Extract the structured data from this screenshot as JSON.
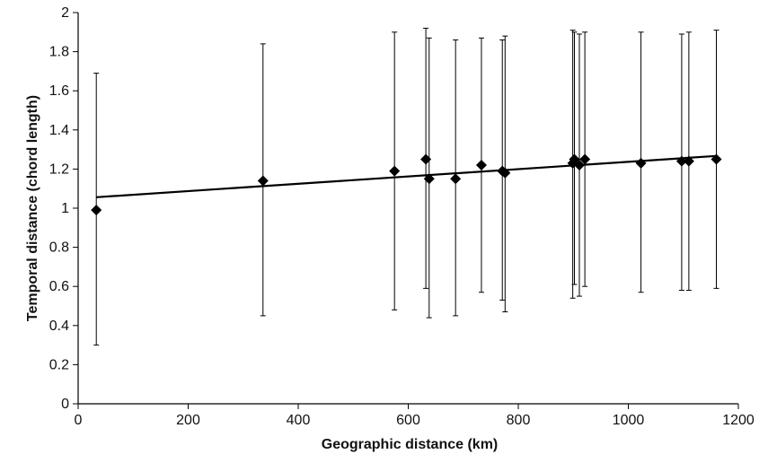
{
  "chart_data": {
    "type": "scatter",
    "title": "",
    "xlabel": "Geographic distance (km)",
    "ylabel": "Temporal distance (chord length)",
    "xlim": [
      0,
      1200
    ],
    "ylim": [
      0,
      2
    ],
    "x_ticks": [
      0,
      200,
      400,
      600,
      800,
      1000,
      1200
    ],
    "y_ticks": [
      0,
      0.2,
      0.4,
      0.6,
      0.8,
      1,
      1.2,
      1.4,
      1.6,
      1.8,
      2
    ],
    "x_tick_labels": [
      "0",
      "200",
      "400",
      "600",
      "800",
      "1000",
      "1200"
    ],
    "y_tick_labels": [
      "0",
      "0.2",
      "0.4",
      "0.6",
      "0.8",
      "1",
      "1.2",
      "1.4",
      "1.6",
      "1.8",
      "2"
    ],
    "grid": false,
    "legend": "none",
    "marker": "diamond",
    "points": [
      {
        "x": 33,
        "y": 0.99,
        "lower": 0.3,
        "upper": 1.69
      },
      {
        "x": 336,
        "y": 1.14,
        "lower": 0.45,
        "upper": 1.84
      },
      {
        "x": 575,
        "y": 1.19,
        "lower": 0.48,
        "upper": 1.9
      },
      {
        "x": 632,
        "y": 1.25,
        "lower": 0.59,
        "upper": 1.92
      },
      {
        "x": 638,
        "y": 1.15,
        "lower": 0.44,
        "upper": 1.87
      },
      {
        "x": 686,
        "y": 1.15,
        "lower": 0.45,
        "upper": 1.86
      },
      {
        "x": 733,
        "y": 1.22,
        "lower": 0.57,
        "upper": 1.87
      },
      {
        "x": 771,
        "y": 1.19,
        "lower": 0.53,
        "upper": 1.86
      },
      {
        "x": 776,
        "y": 1.18,
        "lower": 0.47,
        "upper": 1.88
      },
      {
        "x": 899,
        "y": 1.23,
        "lower": 0.54,
        "upper": 1.91
      },
      {
        "x": 902,
        "y": 1.25,
        "lower": 0.61,
        "upper": 1.9
      },
      {
        "x": 911,
        "y": 1.22,
        "lower": 0.55,
        "upper": 1.89
      },
      {
        "x": 921,
        "y": 1.25,
        "lower": 0.6,
        "upper": 1.9
      },
      {
        "x": 1023,
        "y": 1.23,
        "lower": 0.57,
        "upper": 1.9
      },
      {
        "x": 1097,
        "y": 1.24,
        "lower": 0.58,
        "upper": 1.89
      },
      {
        "x": 1110,
        "y": 1.24,
        "lower": 0.58,
        "upper": 1.9
      },
      {
        "x": 1160,
        "y": 1.25,
        "lower": 0.59,
        "upper": 1.91
      }
    ],
    "trendline": {
      "type": "linear",
      "x": [
        33,
        1160
      ],
      "y": [
        1.056,
        1.267
      ]
    }
  }
}
